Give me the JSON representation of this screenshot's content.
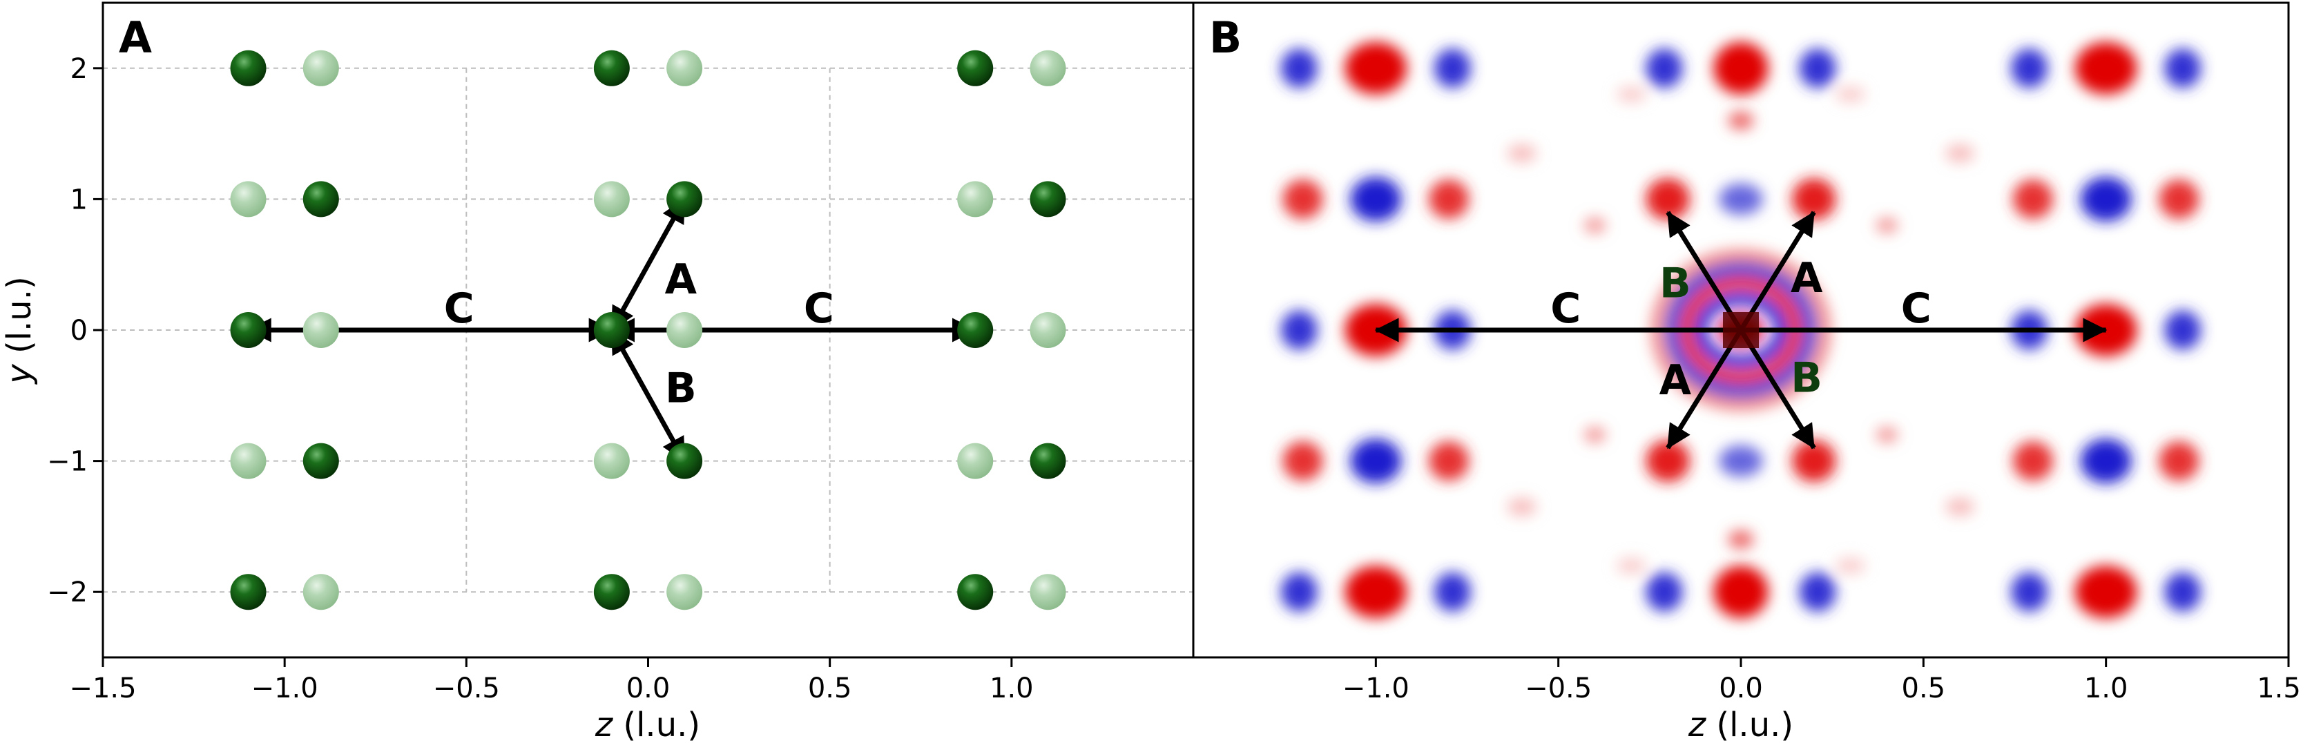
{
  "chart_data": [
    {
      "type": "scatter",
      "panel_label": "A",
      "xlabel_var": "z",
      "xlabel_unit": " (l.u.)",
      "ylabel_var": "y",
      "ylabel_unit": " (l.u.)",
      "xlim": [
        -1.5,
        1.5
      ],
      "ylim": [
        -2.5,
        2.5
      ],
      "xticks": [
        -1.5,
        -1.0,
        -0.5,
        0.0,
        0.5,
        1.0
      ],
      "xtick_labels": [
        "−1.5",
        "−1.0",
        "−0.5",
        "0.0",
        "0.5",
        "1.0"
      ],
      "yticks": [
        -2,
        -1,
        0,
        1,
        2
      ],
      "ytick_labels": [
        "−2",
        "−1",
        "0",
        "1",
        "2"
      ],
      "grid": true,
      "colors": {
        "dark_atom": "#0f5c0f",
        "light_atom": "#a8cfa8",
        "grid": "#bdbdbd",
        "arrow": "#000000"
      },
      "series": [
        {
          "name": "dark",
          "points": [
            [
              -1.1,
              2
            ],
            [
              -0.1,
              2
            ],
            [
              0.9,
              2
            ],
            [
              -0.9,
              1
            ],
            [
              0.1,
              1
            ],
            [
              1.1,
              1
            ],
            [
              -1.1,
              0
            ],
            [
              -0.1,
              0
            ],
            [
              0.9,
              0
            ],
            [
              -0.9,
              -1
            ],
            [
              0.1,
              -1
            ],
            [
              1.1,
              -1
            ],
            [
              -1.1,
              -2
            ],
            [
              -0.1,
              -2
            ],
            [
              0.9,
              -2
            ]
          ]
        },
        {
          "name": "light",
          "points": [
            [
              -0.9,
              2
            ],
            [
              0.1,
              2
            ],
            [
              1.1,
              2
            ],
            [
              -1.1,
              1
            ],
            [
              -0.1,
              1
            ],
            [
              0.9,
              1
            ],
            [
              -0.9,
              0
            ],
            [
              0.1,
              0
            ],
            [
              1.1,
              0
            ],
            [
              -1.1,
              -1
            ],
            [
              -0.1,
              -1
            ],
            [
              0.9,
              -1
            ],
            [
              -0.9,
              -2
            ],
            [
              0.1,
              -2
            ],
            [
              1.1,
              -2
            ]
          ]
        }
      ],
      "arrows": [
        {
          "label": "C",
          "from": [
            -0.1,
            0
          ],
          "to": [
            -1.1,
            0
          ],
          "label_pos": [
            -0.52,
            0.17
          ]
        },
        {
          "label": "C",
          "from": [
            -0.1,
            0
          ],
          "to": [
            0.9,
            0
          ],
          "label_pos": [
            0.47,
            0.17
          ]
        },
        {
          "label": "A",
          "from": [
            -0.1,
            0
          ],
          "to": [
            0.1,
            1
          ],
          "label_pos": [
            0.09,
            0.39
          ]
        },
        {
          "label": "B",
          "from": [
            -0.1,
            0
          ],
          "to": [
            0.1,
            -1
          ],
          "label_pos": [
            0.09,
            -0.44
          ]
        }
      ]
    },
    {
      "type": "heatmap",
      "panel_label": "B",
      "xlabel_var": "z",
      "xlabel_unit": " (l.u.)",
      "xlim": [
        -1.5,
        1.5
      ],
      "ylim": [
        -2.5,
        2.5
      ],
      "xticks": [
        -1.0,
        -0.5,
        0.0,
        0.5,
        1.0,
        1.5
      ],
      "xtick_labels": [
        "−1.0",
        "−0.5",
        "0.0",
        "0.5",
        "1.0",
        "1.5"
      ],
      "colormap": {
        "positive": "#e00000",
        "negative": "#0000c8",
        "zero": "#ffffff"
      },
      "blobs": [
        {
          "z": -1.0,
          "y": 2,
          "value": 1.0,
          "rz": 0.085,
          "ry": 0.2
        },
        {
          "z": -1.21,
          "y": 2,
          "value": -0.8,
          "rz": 0.05,
          "ry": 0.15
        },
        {
          "z": -0.79,
          "y": 2,
          "value": -0.8,
          "rz": 0.05,
          "ry": 0.15
        },
        {
          "z": 0.0,
          "y": 2,
          "value": 1.0,
          "rz": 0.075,
          "ry": 0.2
        },
        {
          "z": -0.21,
          "y": 2,
          "value": -0.8,
          "rz": 0.05,
          "ry": 0.15
        },
        {
          "z": 0.21,
          "y": 2,
          "value": -0.8,
          "rz": 0.05,
          "ry": 0.15
        },
        {
          "z": 1.0,
          "y": 2,
          "value": 1.0,
          "rz": 0.085,
          "ry": 0.2
        },
        {
          "z": 0.79,
          "y": 2,
          "value": -0.8,
          "rz": 0.05,
          "ry": 0.15
        },
        {
          "z": 1.21,
          "y": 2,
          "value": -0.8,
          "rz": 0.05,
          "ry": 0.15
        },
        {
          "z": -1.0,
          "y": 1,
          "value": -0.9,
          "rz": 0.07,
          "ry": 0.17
        },
        {
          "z": -1.2,
          "y": 1,
          "value": 0.8,
          "rz": 0.055,
          "ry": 0.15
        },
        {
          "z": -0.8,
          "y": 1,
          "value": 0.8,
          "rz": 0.055,
          "ry": 0.15
        },
        {
          "z": -0.2,
          "y": 1,
          "value": 0.9,
          "rz": 0.06,
          "ry": 0.16
        },
        {
          "z": 0.2,
          "y": 1,
          "value": 0.9,
          "rz": 0.06,
          "ry": 0.16
        },
        {
          "z": 0.0,
          "y": 1,
          "value": -0.6,
          "rz": 0.06,
          "ry": 0.12
        },
        {
          "z": 1.0,
          "y": 1,
          "value": -0.9,
          "rz": 0.07,
          "ry": 0.17
        },
        {
          "z": 0.8,
          "y": 1,
          "value": 0.8,
          "rz": 0.055,
          "ry": 0.15
        },
        {
          "z": 1.2,
          "y": 1,
          "value": 0.8,
          "rz": 0.055,
          "ry": 0.15
        },
        {
          "z": -1.0,
          "y": 0,
          "value": 1.0,
          "rz": 0.085,
          "ry": 0.2
        },
        {
          "z": -1.21,
          "y": 0,
          "value": -0.8,
          "rz": 0.05,
          "ry": 0.15
        },
        {
          "z": -0.79,
          "y": 0,
          "value": -0.8,
          "rz": 0.05,
          "ry": 0.15
        },
        {
          "z": 1.0,
          "y": 0,
          "value": 1.0,
          "rz": 0.085,
          "ry": 0.2
        },
        {
          "z": 0.79,
          "y": 0,
          "value": -0.8,
          "rz": 0.05,
          "ry": 0.15
        },
        {
          "z": 1.21,
          "y": 0,
          "value": -0.8,
          "rz": 0.05,
          "ry": 0.15
        },
        {
          "z": -1.0,
          "y": -1,
          "value": -0.9,
          "rz": 0.07,
          "ry": 0.17
        },
        {
          "z": -1.2,
          "y": -1,
          "value": 0.8,
          "rz": 0.055,
          "ry": 0.15
        },
        {
          "z": -0.8,
          "y": -1,
          "value": 0.8,
          "rz": 0.055,
          "ry": 0.15
        },
        {
          "z": -0.2,
          "y": -1,
          "value": 0.9,
          "rz": 0.06,
          "ry": 0.16
        },
        {
          "z": 0.2,
          "y": -1,
          "value": 0.9,
          "rz": 0.06,
          "ry": 0.16
        },
        {
          "z": 0.0,
          "y": -1,
          "value": -0.6,
          "rz": 0.06,
          "ry": 0.12
        },
        {
          "z": 1.0,
          "y": -1,
          "value": -0.9,
          "rz": 0.07,
          "ry": 0.17
        },
        {
          "z": 0.8,
          "y": -1,
          "value": 0.8,
          "rz": 0.055,
          "ry": 0.15
        },
        {
          "z": 1.2,
          "y": -1,
          "value": 0.8,
          "rz": 0.055,
          "ry": 0.15
        },
        {
          "z": -1.0,
          "y": -2,
          "value": 1.0,
          "rz": 0.085,
          "ry": 0.2
        },
        {
          "z": -1.21,
          "y": -2,
          "value": -0.8,
          "rz": 0.05,
          "ry": 0.15
        },
        {
          "z": -0.79,
          "y": -2,
          "value": -0.8,
          "rz": 0.05,
          "ry": 0.15
        },
        {
          "z": 0.0,
          "y": -2,
          "value": 1.0,
          "rz": 0.075,
          "ry": 0.2
        },
        {
          "z": -0.21,
          "y": -2,
          "value": -0.8,
          "rz": 0.05,
          "ry": 0.15
        },
        {
          "z": 0.21,
          "y": -2,
          "value": -0.8,
          "rz": 0.05,
          "ry": 0.15
        },
        {
          "z": 1.0,
          "y": -2,
          "value": 1.0,
          "rz": 0.085,
          "ry": 0.2
        },
        {
          "z": 0.79,
          "y": -2,
          "value": -0.8,
          "rz": 0.05,
          "ry": 0.15
        },
        {
          "z": 1.21,
          "y": -2,
          "value": -0.8,
          "rz": 0.05,
          "ry": 0.15
        },
        {
          "z": 0.0,
          "y": 1.6,
          "value": 0.6,
          "rz": 0.035,
          "ry": 0.07
        },
        {
          "z": 0.0,
          "y": -1.6,
          "value": 0.6,
          "rz": 0.035,
          "ry": 0.07
        },
        {
          "z": 0.0,
          "y": 0.0,
          "value": 1.0,
          "rz": 0.06,
          "ry": 0.12
        },
        {
          "z": -0.4,
          "y": 0.8,
          "value": 0.4,
          "rz": 0.03,
          "ry": 0.06
        },
        {
          "z": 0.4,
          "y": 0.8,
          "value": 0.4,
          "rz": 0.03,
          "ry": 0.06
        },
        {
          "z": -0.4,
          "y": -0.8,
          "value": 0.4,
          "rz": 0.03,
          "ry": 0.06
        },
        {
          "z": 0.4,
          "y": -0.8,
          "value": 0.4,
          "rz": 0.03,
          "ry": 0.06
        },
        {
          "z": -0.6,
          "y": 1.35,
          "value": 0.25,
          "rz": 0.04,
          "ry": 0.07
        },
        {
          "z": 0.6,
          "y": 1.35,
          "value": 0.25,
          "rz": 0.04,
          "ry": 0.07
        },
        {
          "z": -0.6,
          "y": -1.35,
          "value": 0.25,
          "rz": 0.04,
          "ry": 0.07
        },
        {
          "z": 0.6,
          "y": -1.35,
          "value": 0.25,
          "rz": 0.04,
          "ry": 0.07
        },
        {
          "z": -0.3,
          "y": 1.8,
          "value": 0.2,
          "rz": 0.04,
          "ry": 0.06
        },
        {
          "z": 0.3,
          "y": 1.8,
          "value": 0.2,
          "rz": 0.04,
          "ry": 0.06
        },
        {
          "z": -0.3,
          "y": -1.8,
          "value": 0.2,
          "rz": 0.04,
          "ry": 0.06
        },
        {
          "z": 0.3,
          "y": -1.8,
          "value": 0.2,
          "rz": 0.04,
          "ry": 0.06
        }
      ],
      "rings": [
        {
          "z": 0.0,
          "y": 0.0,
          "rz": 0.11,
          "ry": 0.24,
          "value": -0.9
        },
        {
          "z": 0.0,
          "y": 0.0,
          "rz": 0.15,
          "ry": 0.36,
          "value": 0.9
        },
        {
          "z": 0.0,
          "y": 0.0,
          "rz": 0.19,
          "ry": 0.47,
          "value": -0.8
        },
        {
          "z": 0.0,
          "y": 0.0,
          "rz": 0.23,
          "ry": 0.57,
          "value": 0.45
        }
      ],
      "arrows": [
        {
          "label": "C",
          "from": [
            0,
            0
          ],
          "to": [
            -1.0,
            0
          ],
          "label_pos": [
            -0.48,
            0.17
          ]
        },
        {
          "label": "C",
          "from": [
            0,
            0
          ],
          "to": [
            1.0,
            0
          ],
          "label_pos": [
            0.48,
            0.17
          ]
        },
        {
          "label": "A",
          "from": [
            0,
            0
          ],
          "to": [
            0.2,
            0.9
          ],
          "label_pos": [
            0.18,
            0.4
          ]
        },
        {
          "label": "B",
          "from": [
            0,
            0
          ],
          "to": [
            -0.2,
            0.9
          ],
          "label_pos": [
            -0.18,
            0.36
          ]
        },
        {
          "label": "A",
          "from": [
            0,
            0
          ],
          "to": [
            -0.2,
            -0.9
          ],
          "label_pos": [
            -0.18,
            -0.38
          ]
        },
        {
          "label": "B",
          "from": [
            0,
            0
          ],
          "to": [
            0.2,
            -0.9
          ],
          "label_pos": [
            0.18,
            -0.36
          ]
        }
      ]
    }
  ]
}
